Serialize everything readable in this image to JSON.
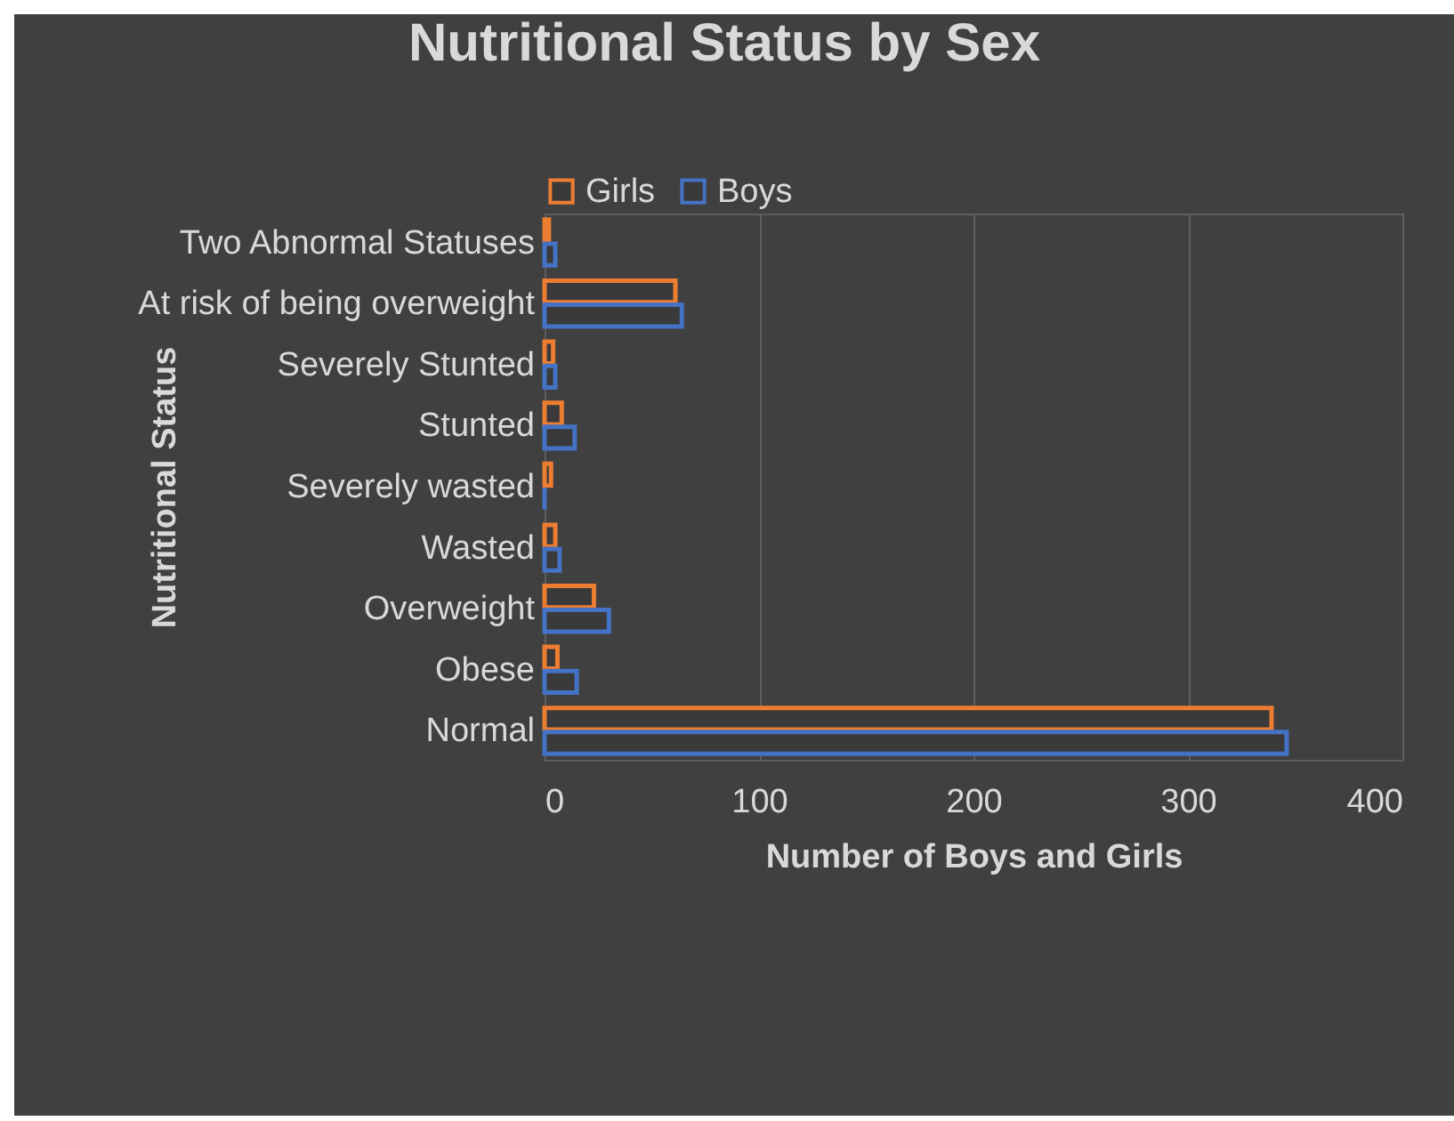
{
  "chart_data": {
    "type": "bar",
    "orientation": "horizontal",
    "title": "Nutritional Status by Sex",
    "xlabel": "Number of Boys and Girls",
    "ylabel": "Nutritional Status",
    "categories": [
      "Two Abnormal Statuses",
      "At risk of being overweight",
      "Severely Stunted",
      "Stunted",
      "Severely wasted",
      "Wasted",
      "Overweight",
      "Obese",
      "Normal"
    ],
    "series": [
      {
        "name": "Girls",
        "color": "#ed7d31",
        "values": [
          2,
          61,
          4,
          8,
          3,
          5,
          23,
          6,
          339
        ]
      },
      {
        "name": "Boys",
        "color": "#4472c4",
        "values": [
          5,
          64,
          5,
          14,
          0,
          7,
          30,
          15,
          346
        ]
      }
    ],
    "xlim": [
      0,
      400
    ],
    "xticks": [
      0,
      100,
      200,
      300,
      400
    ],
    "grid": "x",
    "legend": "top"
  }
}
